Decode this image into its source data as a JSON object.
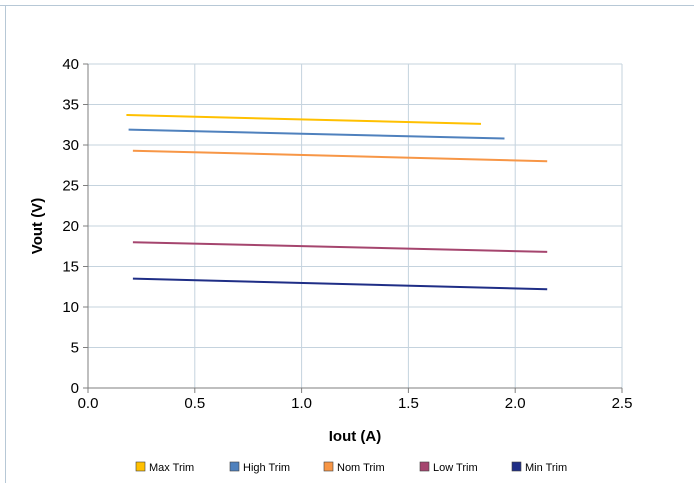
{
  "chart_data": {
    "type": "line",
    "title": "",
    "xlabel": "Iout (A)",
    "ylabel": "Vout (V)",
    "xlim": [
      0,
      2.5
    ],
    "ylim": [
      0,
      40
    ],
    "xticks": [
      "0.0",
      "0.5",
      "1.0",
      "1.5",
      "2.0",
      "2.5"
    ],
    "yticks": [
      "0",
      "5",
      "10",
      "15",
      "20",
      "25",
      "30",
      "35",
      "40"
    ],
    "grid": true,
    "legend_position": "bottom",
    "series": [
      {
        "name": "Max Trim",
        "color": "#ffc000",
        "x": [
          0.18,
          1.84
        ],
        "y": [
          33.7,
          32.6
        ]
      },
      {
        "name": "High Trim",
        "color": "#4f81bd",
        "x": [
          0.19,
          1.95
        ],
        "y": [
          31.9,
          30.8
        ]
      },
      {
        "name": "Nom Trim",
        "color": "#f79646",
        "x": [
          0.21,
          2.15
        ],
        "y": [
          29.3,
          28.0
        ]
      },
      {
        "name": "Low Trim",
        "color": "#a5456e",
        "x": [
          0.21,
          2.15
        ],
        "y": [
          18.0,
          16.8
        ]
      },
      {
        "name": "Min Trim",
        "color": "#1f2e86",
        "x": [
          0.21,
          2.15
        ],
        "y": [
          13.5,
          12.2
        ]
      }
    ]
  }
}
